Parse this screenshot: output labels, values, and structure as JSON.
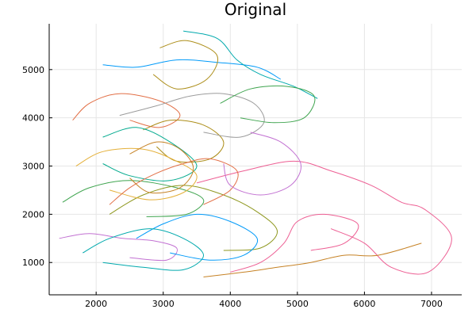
{
  "chart_data": {
    "type": "line",
    "title": "Original",
    "xlabel": "",
    "ylabel": "",
    "xlim": [
      1300,
      7450
    ],
    "ylim": [
      330,
      5950
    ],
    "xticks": [
      2000,
      3000,
      4000,
      5000,
      6000,
      7000
    ],
    "yticks": [
      1000,
      2000,
      3000,
      4000,
      5000
    ],
    "xtick_labels": [
      "2000",
      "3000",
      "4000",
      "5000",
      "6000",
      "7000"
    ],
    "ytick_labels": [
      "1000",
      "2000",
      "3000",
      "4000",
      "5000"
    ],
    "grid": true,
    "legend": "none",
    "series_colors": [
      "#009AF9",
      "#E26F46",
      "#3EA44E",
      "#C271D2",
      "#AC8D18",
      "#00A9AD",
      "#ED5E93",
      "#C68225",
      "#00A98D",
      "#8E971E",
      "#9B9B9B",
      "#E4B03A"
    ],
    "series": [
      {
        "values": [
          [
            2100,
            5100
          ],
          [
            2600,
            5050
          ],
          [
            3200,
            5200
          ],
          [
            3800,
            5150
          ],
          [
            4400,
            5050
          ],
          [
            4750,
            4800
          ]
        ]
      },
      {
        "values": [
          [
            1650,
            3950
          ],
          [
            1900,
            4300
          ],
          [
            2350,
            4500
          ],
          [
            2950,
            4350
          ],
          [
            3250,
            4050
          ],
          [
            2950,
            3800
          ],
          [
            2500,
            3950
          ]
        ]
      },
      {
        "values": [
          [
            1500,
            2250
          ],
          [
            1900,
            2550
          ],
          [
            2500,
            2700
          ],
          [
            3200,
            2550
          ],
          [
            3600,
            2300
          ],
          [
            3350,
            2000
          ],
          [
            2750,
            1950
          ]
        ]
      },
      {
        "values": [
          [
            1450,
            1500
          ],
          [
            1900,
            1600
          ],
          [
            2400,
            1500
          ],
          [
            2850,
            1450
          ],
          [
            3200,
            1300
          ],
          [
            3050,
            1050
          ],
          [
            2500,
            1100
          ]
        ]
      },
      {
        "values": [
          [
            2700,
            3750
          ],
          [
            3100,
            3950
          ],
          [
            3600,
            3850
          ],
          [
            3900,
            3500
          ],
          [
            3700,
            3150
          ],
          [
            3200,
            3100
          ],
          [
            2900,
            3400
          ]
        ]
      },
      {
        "values": [
          [
            3300,
            5800
          ],
          [
            3800,
            5650
          ],
          [
            4100,
            5200
          ],
          [
            4450,
            4900
          ],
          [
            4950,
            4650
          ],
          [
            5300,
            4400
          ]
        ]
      },
      {
        "values": [
          [
            3500,
            2650
          ],
          [
            4200,
            2900
          ],
          [
            4950,
            3100
          ],
          [
            5500,
            2900
          ],
          [
            6100,
            2600
          ],
          [
            6550,
            2250
          ],
          [
            6900,
            2100
          ],
          [
            7300,
            1500
          ],
          [
            6950,
            800
          ],
          [
            6400,
            900
          ],
          [
            6000,
            1400
          ],
          [
            5500,
            1700
          ]
        ]
      },
      {
        "values": [
          [
            3600,
            700
          ],
          [
            4200,
            800
          ],
          [
            4700,
            900
          ],
          [
            5200,
            1000
          ],
          [
            5700,
            1150
          ],
          [
            6200,
            1150
          ],
          [
            6850,
            1400
          ]
        ]
      },
      {
        "values": [
          [
            2100,
            3600
          ],
          [
            2600,
            3800
          ],
          [
            3100,
            3500
          ],
          [
            3500,
            3000
          ],
          [
            3100,
            2700
          ],
          [
            2500,
            2800
          ],
          [
            2100,
            3050
          ]
        ]
      },
      {
        "values": [
          [
            2200,
            2000
          ],
          [
            2700,
            2400
          ],
          [
            3300,
            2600
          ],
          [
            3900,
            2400
          ],
          [
            4400,
            2050
          ],
          [
            4700,
            1650
          ],
          [
            4450,
            1300
          ],
          [
            3900,
            1250
          ]
        ]
      },
      {
        "values": [
          [
            2350,
            4050
          ],
          [
            2900,
            4250
          ],
          [
            3400,
            4450
          ],
          [
            3900,
            4500
          ],
          [
            4350,
            4300
          ],
          [
            4500,
            3900
          ],
          [
            4150,
            3600
          ],
          [
            3600,
            3700
          ]
        ]
      },
      {
        "values": [
          [
            1700,
            3000
          ],
          [
            2100,
            3300
          ],
          [
            2700,
            3350
          ],
          [
            3200,
            3100
          ],
          [
            3500,
            2800
          ],
          [
            3300,
            2450
          ],
          [
            2800,
            2300
          ],
          [
            2200,
            2500
          ]
        ]
      },
      {
        "values": [
          [
            2600,
            1500
          ],
          [
            3000,
            1800
          ],
          [
            3500,
            2000
          ],
          [
            4000,
            1850
          ],
          [
            4400,
            1500
          ],
          [
            4200,
            1150
          ],
          [
            3700,
            1050
          ],
          [
            3100,
            1200
          ]
        ]
      },
      {
        "values": [
          [
            2200,
            2200
          ],
          [
            2500,
            2550
          ],
          [
            2900,
            2850
          ],
          [
            3300,
            3050
          ],
          [
            3700,
            3150
          ],
          [
            4100,
            2900
          ],
          [
            4000,
            2500
          ],
          [
            3600,
            2200
          ]
        ]
      },
      {
        "values": [
          [
            3850,
            4300
          ],
          [
            4300,
            4600
          ],
          [
            4850,
            4650
          ],
          [
            5250,
            4450
          ],
          [
            5100,
            4000
          ],
          [
            4650,
            3900
          ],
          [
            4150,
            4000
          ]
        ]
      },
      {
        "values": [
          [
            4300,
            3700
          ],
          [
            4750,
            3500
          ],
          [
            5050,
            3050
          ],
          [
            4900,
            2600
          ],
          [
            4450,
            2400
          ],
          [
            4000,
            2600
          ],
          [
            3900,
            3050
          ]
        ]
      },
      {
        "values": [
          [
            2950,
            5450
          ],
          [
            3350,
            5600
          ],
          [
            3800,
            5300
          ],
          [
            3650,
            4800
          ],
          [
            3200,
            4600
          ],
          [
            2850,
            4900
          ]
        ]
      },
      {
        "values": [
          [
            1800,
            1200
          ],
          [
            2200,
            1500
          ],
          [
            2800,
            1700
          ],
          [
            3300,
            1500
          ],
          [
            3600,
            1150
          ],
          [
            3300,
            850
          ],
          [
            2700,
            900
          ],
          [
            2100,
            1000
          ]
        ]
      },
      {
        "values": [
          [
            4000,
            800
          ],
          [
            4450,
            1000
          ],
          [
            4800,
            1400
          ],
          [
            5000,
            1850
          ],
          [
            5400,
            2000
          ],
          [
            5900,
            1800
          ],
          [
            5700,
            1400
          ],
          [
            5200,
            1250
          ]
        ]
      },
      {
        "values": [
          [
            2500,
            3250
          ],
          [
            2900,
            3500
          ],
          [
            3250,
            3350
          ],
          [
            3450,
            2950
          ],
          [
            3250,
            2550
          ],
          [
            2800,
            2450
          ],
          [
            2500,
            2750
          ]
        ]
      }
    ]
  }
}
